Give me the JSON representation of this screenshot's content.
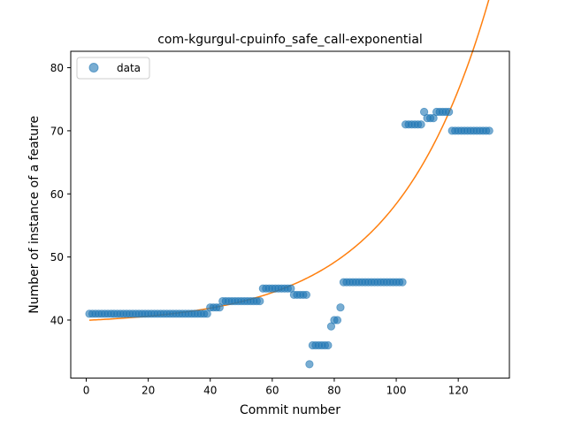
{
  "chart_data": {
    "type": "scatter",
    "title": "com-kgurgul-cpuinfo_safe_call-exponential",
    "xlabel": "Commit number",
    "ylabel": "Number of instance of a feature",
    "xlim": [
      -5,
      136.5
    ],
    "ylim": [
      30.8,
      82.6
    ],
    "xticks": [
      0,
      20,
      40,
      60,
      80,
      100,
      120
    ],
    "yticks": [
      40,
      50,
      60,
      70,
      80
    ],
    "grid": false,
    "legend": {
      "position": "top-left",
      "entries": [
        "data"
      ]
    },
    "colors": {
      "data": "#1f77b4",
      "fit": "#ff7f0e"
    },
    "series": [
      {
        "name": "data",
        "kind": "scatter",
        "x": [
          1,
          2,
          3,
          4,
          5,
          6,
          7,
          8,
          9,
          10,
          11,
          12,
          13,
          14,
          15,
          16,
          17,
          18,
          19,
          20,
          21,
          22,
          23,
          24,
          25,
          26,
          27,
          28,
          29,
          30,
          31,
          32,
          33,
          34,
          35,
          36,
          37,
          38,
          39,
          40,
          41,
          42,
          43,
          44,
          45,
          46,
          47,
          48,
          49,
          50,
          51,
          52,
          53,
          54,
          55,
          56,
          57,
          58,
          59,
          60,
          61,
          62,
          63,
          64,
          65,
          66,
          67,
          68,
          69,
          70,
          71,
          72,
          73,
          74,
          75,
          76,
          77,
          78,
          79,
          80,
          81,
          82,
          83,
          84,
          85,
          86,
          87,
          88,
          89,
          90,
          91,
          92,
          93,
          94,
          95,
          96,
          97,
          98,
          99,
          100,
          101,
          102,
          103,
          104,
          105,
          106,
          107,
          108,
          109,
          110,
          111,
          112,
          113,
          114,
          115,
          116,
          117,
          118,
          119,
          120,
          121,
          122,
          123,
          124,
          125,
          126,
          127,
          128,
          129,
          130
        ],
        "y": [
          41,
          41,
          41,
          41,
          41,
          41,
          41,
          41,
          41,
          41,
          41,
          41,
          41,
          41,
          41,
          41,
          41,
          41,
          41,
          41,
          41,
          41,
          41,
          41,
          41,
          41,
          41,
          41,
          41,
          41,
          41,
          41,
          41,
          41,
          41,
          41,
          41,
          41,
          41,
          42,
          42,
          42,
          42,
          43,
          43,
          43,
          43,
          43,
          43,
          43,
          43,
          43,
          43,
          43,
          43,
          43,
          45,
          45,
          45,
          45,
          45,
          45,
          45,
          45,
          45,
          45,
          44,
          44,
          44,
          44,
          44,
          33,
          36,
          36,
          36,
          36,
          36,
          36,
          39,
          40,
          40,
          42,
          46,
          46,
          46,
          46,
          46,
          46,
          46,
          46,
          46,
          46,
          46,
          46,
          46,
          46,
          46,
          46,
          46,
          46,
          46,
          46,
          71,
          71,
          71,
          71,
          71,
          71,
          73,
          72,
          72,
          72,
          73,
          73,
          73,
          73,
          73,
          70,
          70,
          70,
          70,
          70,
          70,
          70,
          70,
          70,
          70,
          70,
          70,
          70
        ]
      },
      {
        "name": "",
        "kind": "line",
        "fit": {
          "a": 39.26,
          "b": 0.7,
          "c": 0.0331
        }
      }
    ]
  }
}
